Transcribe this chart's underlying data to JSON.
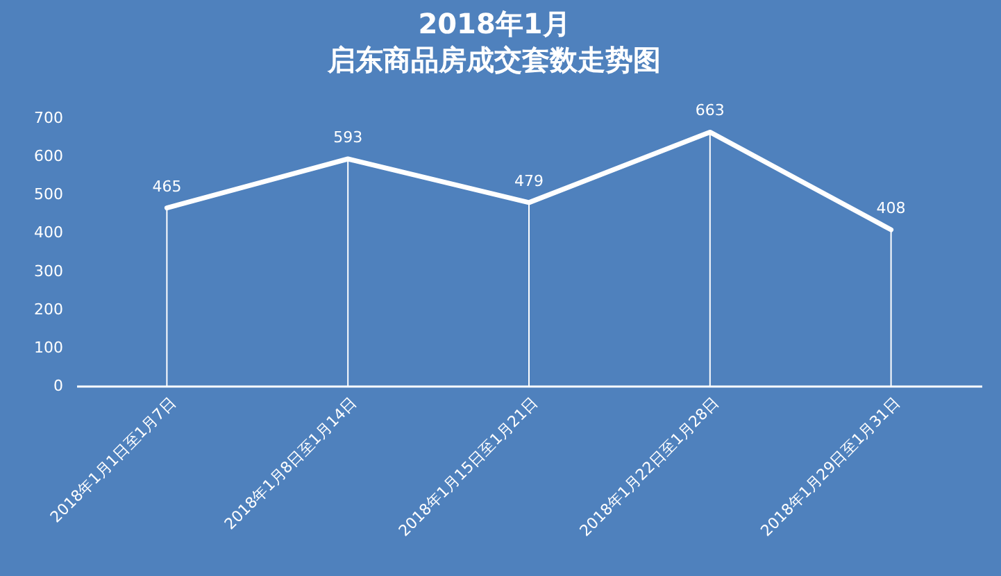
{
  "chart_data": {
    "type": "line",
    "title": "2018年1月",
    "subtitle": "启东商品房成交套数走势图",
    "categories": [
      "2018年1月1日至1月7日",
      "2018年1月8日至1月14日",
      "2018年1月15日至1月21日",
      "2018年1月22日至1月28日",
      "2018年1月29日至1月31日"
    ],
    "series": [
      {
        "type": "bar",
        "color": "#ffffff",
        "values": [
          465,
          593,
          479,
          663,
          408
        ]
      },
      {
        "color": "#ffffff",
        "values": [
          465,
          593,
          479,
          663,
          408
        ],
        "value_labels": [
          "465",
          "593",
          "479",
          "663",
          "408"
        ]
      }
    ],
    "ylim": [
      0,
      700
    ],
    "yticks": [
      0,
      100,
      200,
      300,
      400,
      500,
      600,
      700
    ],
    "grid": false
  }
}
